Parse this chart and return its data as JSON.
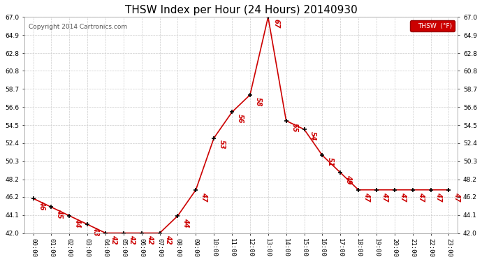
{
  "title": "THSW Index per Hour (24 Hours) 20140930",
  "copyright": "Copyright 2014 Cartronics.com",
  "ylabel": "THSW  (°F)",
  "ylim": [
    42.0,
    67.0
  ],
  "yticks": [
    42.0,
    44.1,
    46.2,
    48.2,
    50.3,
    52.4,
    54.5,
    56.6,
    58.7,
    60.8,
    62.8,
    64.9,
    67.0
  ],
  "hours": [
    0,
    1,
    2,
    3,
    4,
    5,
    6,
    7,
    8,
    9,
    10,
    11,
    12,
    13,
    14,
    15,
    16,
    17,
    18,
    19,
    20,
    21,
    22,
    23
  ],
  "values": [
    46,
    45,
    44,
    43,
    42,
    42,
    42,
    42,
    44,
    47,
    53,
    56,
    58,
    67,
    55,
    54,
    51,
    49,
    47,
    47,
    47,
    47,
    47,
    47
  ],
  "line_color": "#cc0000",
  "marker_color": "#000000",
  "label_color": "#cc0000",
  "legend_text": "THSW  (°F)",
  "legend_bg": "#cc0000",
  "legend_fg": "#ffffff",
  "bg_color": "#ffffff",
  "grid_color": "#cccccc",
  "title_color": "#000000",
  "title_fontsize": 11,
  "label_fontsize": 7,
  "axis_fontsize": 6.5,
  "copyright_fontsize": 6.5
}
